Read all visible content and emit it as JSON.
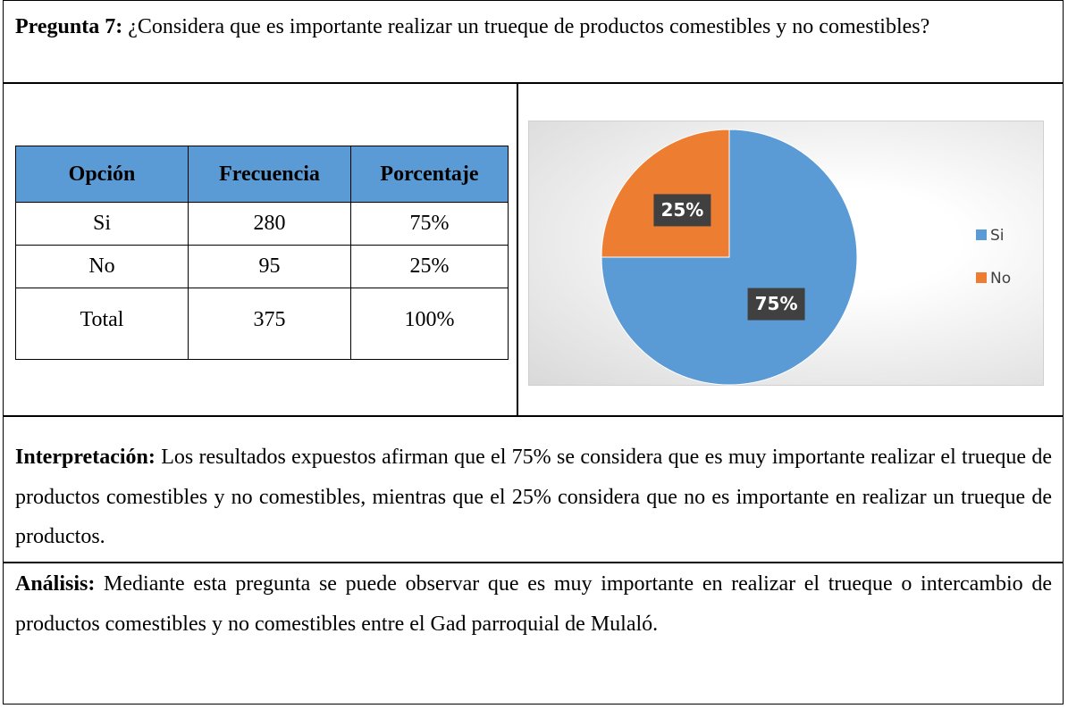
{
  "question": {
    "label": "Pregunta 7:",
    "text": "¿Considera que es importante realizar un trueque de productos comestibles y no comestibles?"
  },
  "table": {
    "header": [
      "Opción",
      "Frecuencia",
      "Porcentaje"
    ],
    "rows": [
      [
        "Si",
        "280",
        "75%"
      ],
      [
        "No",
        "95",
        "25%"
      ],
      [
        "Total",
        "375",
        "100%"
      ]
    ]
  },
  "chart_data": {
    "type": "pie",
    "categories": [
      "Si",
      "No"
    ],
    "values": [
      75,
      25
    ],
    "value_labels": [
      "75%",
      "25%"
    ],
    "colors": [
      "#5b9bd5",
      "#ed7d31"
    ],
    "legend": "right"
  },
  "interpretation": {
    "label": "Interpretación:",
    "text": "Los resultados expuestos afirman que el 75% se considera que es muy importante realizar el trueque de productos comestibles y no comestibles, mientras que el 25% considera que no es importante en realizar un trueque de productos."
  },
  "analysis": {
    "label": "Análisis:",
    "text": "Mediante esta pregunta se puede observar que es muy importante en realizar el trueque o intercambio de productos comestibles y no comestibles entre el Gad parroquial de Mulaló."
  }
}
